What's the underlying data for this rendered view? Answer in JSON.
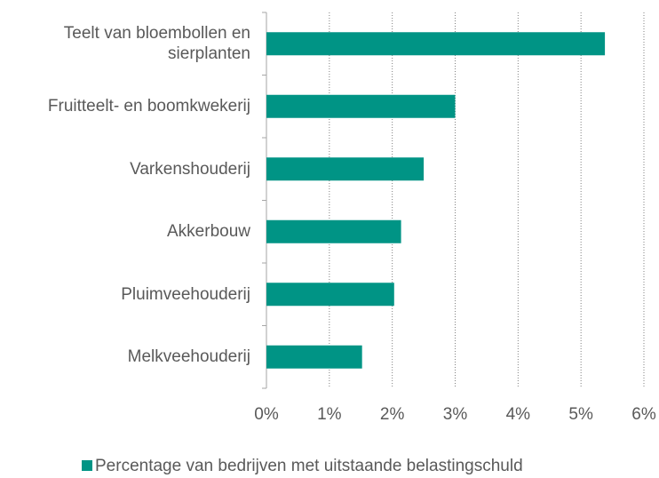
{
  "chart_data": {
    "type": "hbar",
    "categories": [
      "Teelt van bloembollen en sierplanten",
      "Fruitteelt- en boomkwekerij",
      "Varkenshouderij",
      "Akkerbouw",
      "Pluimveehouderij",
      "Melkveehouderij"
    ],
    "series": [
      {
        "name": "Percentage van bedrijven met uitstaande belastingschuld",
        "color": "#009485",
        "values": [
          5.38,
          3.0,
          2.5,
          2.14,
          2.03,
          1.52
        ]
      }
    ],
    "xlim": [
      0,
      6
    ],
    "xticks": [
      {
        "value": 0,
        "label": "0%"
      },
      {
        "value": 1,
        "label": "1%"
      },
      {
        "value": 2,
        "label": "2%"
      },
      {
        "value": 3,
        "label": "3%"
      },
      {
        "value": 4,
        "label": "4%"
      },
      {
        "value": 5,
        "label": "5%"
      },
      {
        "value": 6,
        "label": "6%"
      }
    ],
    "grid": true,
    "legend": "bottom"
  }
}
